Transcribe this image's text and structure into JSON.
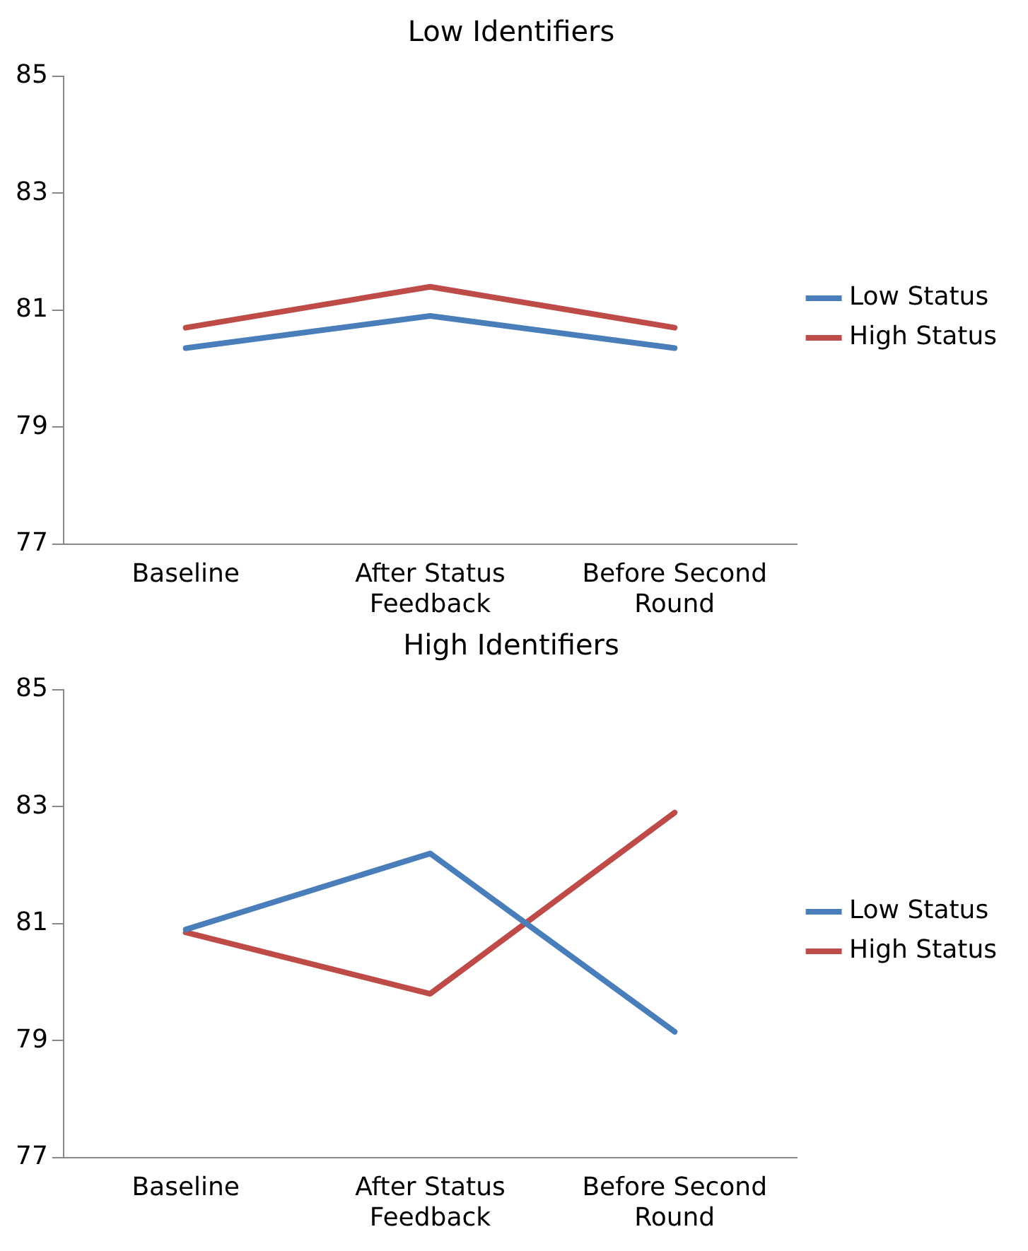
{
  "chart_data": [
    {
      "type": "line",
      "title": "Low Identifiers",
      "categories": [
        "Baseline",
        "After Status Feedback",
        "Before Second Round"
      ],
      "series": [
        {
          "name": "Low Status",
          "color": "#4a7ebb",
          "values": [
            80.35,
            80.9,
            80.35
          ]
        },
        {
          "name": "High Status",
          "color": "#be4b48",
          "values": [
            80.7,
            81.4,
            80.7
          ]
        }
      ],
      "ylim": [
        77,
        85
      ],
      "yticks": [
        77,
        79,
        81,
        83,
        85
      ],
      "grid": false,
      "legend": "right"
    },
    {
      "type": "line",
      "title": "High Identifiers",
      "categories": [
        "Baseline",
        "After Status Feedback",
        "Before Second Round"
      ],
      "series": [
        {
          "name": "Low Status",
          "color": "#4a7ebb",
          "values": [
            80.9,
            82.2,
            79.15
          ]
        },
        {
          "name": "High Status",
          "color": "#be4b48",
          "values": [
            80.85,
            79.8,
            82.9
          ]
        }
      ],
      "ylim": [
        77,
        85
      ],
      "yticks": [
        77,
        79,
        81,
        83,
        85
      ],
      "grid": false,
      "legend": "right"
    }
  ]
}
